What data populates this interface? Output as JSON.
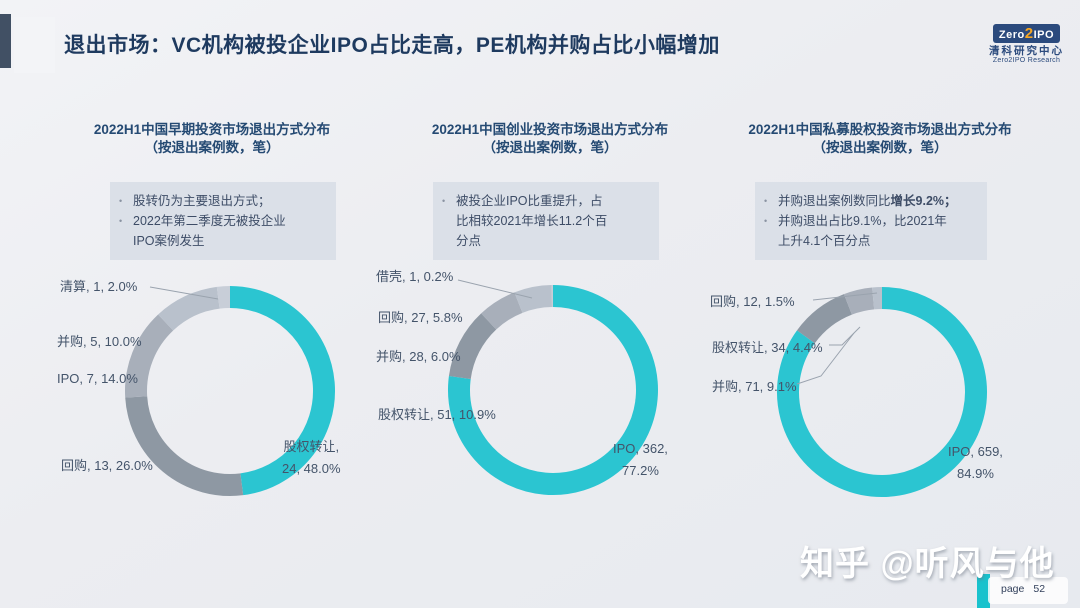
{
  "header": {
    "title": "退出市场：VC机构被投企业IPO占比走高，PE机构并购占比小幅增加"
  },
  "logo": {
    "zero": "Zero",
    "two": "2",
    "ipo": "IPO",
    "org": "清科研究中心",
    "sub": "Zero2IPO Research"
  },
  "colors": {
    "accent_teal": "#2bc5d1",
    "palette": [
      "#2bc5d1",
      "#8e98a3",
      "#a8afba",
      "#b9c1cc",
      "#c8ced8"
    ],
    "navy_title": "#1e3a5f",
    "note_bg": "#dbe0e8",
    "label_text": "#44546a"
  },
  "chart_data": [
    {
      "type": "pie",
      "title": "2022H1中国早期投资市场退出方式分布",
      "subtitle": "（按退出案例数，笔）",
      "unit": "笔",
      "legend_position": "none",
      "slices": [
        {
          "name": "股权转让",
          "value": 24,
          "pct": 48.0
        },
        {
          "name": "回购",
          "value": 13,
          "pct": 26.0
        },
        {
          "name": "IPO",
          "value": 7,
          "pct": 14.0
        },
        {
          "name": "并购",
          "value": 5,
          "pct": 10.0
        },
        {
          "name": "清算",
          "value": 1,
          "pct": 2.0
        }
      ],
      "side_labels": [
        "清算, 1, 2.0%",
        "并购, 5, 10.0%",
        "IPO, 7, 14.0%",
        "回购, 13, 26.0%"
      ],
      "main_label": [
        "股权转让,",
        "24, 48.0%"
      ],
      "notes": [
        [
          [
            {
              "t": "股转仍为主要退出方式；"
            }
          ]
        ],
        [
          [
            {
              "t": "2022年第二季度无被投企业"
            }
          ],
          [
            {
              "t": "IPO案例发生"
            }
          ]
        ]
      ]
    },
    {
      "type": "pie",
      "title": "2022H1中国创业投资市场退出方式分布",
      "subtitle": "（按退出案例数，笔）",
      "unit": "笔",
      "legend_position": "none",
      "slices": [
        {
          "name": "IPO",
          "value": 362,
          "pct": 77.2
        },
        {
          "name": "股权转让",
          "value": 51,
          "pct": 10.9
        },
        {
          "name": "并购",
          "value": 28,
          "pct": 6.0
        },
        {
          "name": "回购",
          "value": 27,
          "pct": 5.8
        },
        {
          "name": "借壳",
          "value": 1,
          "pct": 0.2
        }
      ],
      "side_labels": [
        "借壳, 1, 0.2%",
        "回购, 27, 5.8%",
        "并购, 28, 6.0%",
        "股权转让, 51, 10.9%"
      ],
      "main_label": [
        "IPO, 362,",
        "77.2%"
      ],
      "notes": [
        [
          [
            {
              "t": "被投企业IPO比重提升，占"
            }
          ],
          [
            {
              "t": "比相较2021年增长11.2个百"
            }
          ],
          [
            {
              "t": "分点"
            }
          ]
        ]
      ]
    },
    {
      "type": "pie",
      "title": "2022H1中国私募股权投资市场退出方式分布",
      "subtitle": "（按退出案例数，笔）",
      "unit": "笔",
      "legend_position": "none",
      "slices": [
        {
          "name": "IPO",
          "value": 659,
          "pct": 84.9
        },
        {
          "name": "并购",
          "value": 71,
          "pct": 9.1
        },
        {
          "name": "股权转让",
          "value": 34,
          "pct": 4.4
        },
        {
          "name": "回购",
          "value": 12,
          "pct": 1.5
        }
      ],
      "side_labels": [
        "回购, 12, 1.5%",
        "股权转让, 34, 4.4%",
        "并购, 71, 9.1%"
      ],
      "main_label": [
        "IPO, 659,",
        "84.9%"
      ],
      "notes": [
        [
          [
            {
              "t": "并购退出案例数同比"
            },
            {
              "t": "增长9.2%；",
              "b": true
            }
          ]
        ],
        [
          [
            {
              "t": "并购退出占比9.1%，比2021年"
            }
          ],
          [
            {
              "t": "上升4.1个百分点"
            }
          ]
        ]
      ]
    }
  ],
  "footer": {
    "watermark": "知乎 @听风与他",
    "page_label": "page",
    "page_number": "52"
  }
}
